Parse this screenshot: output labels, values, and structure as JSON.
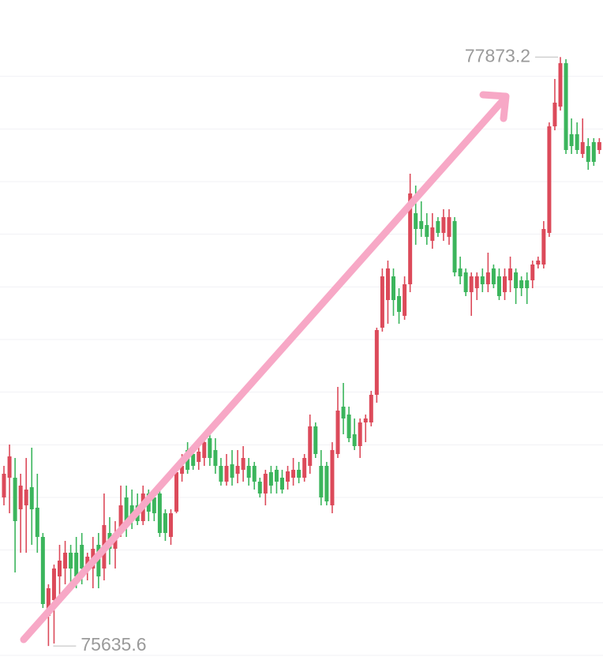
{
  "chart_data": {
    "type": "candlestick",
    "up_color": "#dc4a5a",
    "down_color": "#3bb55c",
    "grid": true,
    "ylim": [
      75552,
      78090
    ],
    "yticks": [
      75600,
      75800,
      76000,
      76200,
      76400,
      76600,
      76800,
      77000,
      77200,
      77400,
      77600,
      77800
    ],
    "high_marker": 77873.2,
    "low_marker": 75635.6,
    "open": [
      76200,
      76275,
      76275,
      76155,
      76170,
      76239,
      76161,
      76050,
      75750,
      75810,
      75900,
      75930,
      75990,
      75990,
      76020,
      75930,
      75930,
      76020,
      75930,
      76065,
      76005,
      76080,
      76200,
      76170,
      76170,
      76110,
      76215,
      76200,
      76215,
      76140,
      76050,
      76146,
      76290,
      76380,
      76365,
      76335,
      76350,
      76425,
      76380,
      76320,
      76260,
      76326,
      76290,
      76305,
      76320,
      76320,
      76260,
      76215,
      76296,
      76305,
      76275,
      76260,
      76275,
      76305,
      76275,
      76320,
      76470,
      76320,
      76320,
      76170,
      76365,
      76545,
      76515,
      76440,
      76395,
      76485,
      76485,
      76590,
      76845,
      76950,
      77040,
      76965,
      76890,
      77010,
      77280,
      77250,
      77235,
      77175,
      77250,
      77205,
      77190,
      77250,
      77070,
      77055,
      76980,
      76995,
      77040,
      77010,
      77070,
      77040,
      76980,
      77025,
      77055,
      77025,
      77025,
      77025,
      77085,
      77085,
      77205,
      77610,
      77685,
      77850,
      77580,
      77580,
      77505,
      77535,
      77550,
      77520
    ],
    "high": [
      76320,
      76401,
      76350,
      76290,
      76350,
      76389,
      76290,
      76065,
      75870,
      75945,
      76020,
      76035,
      76020,
      76050,
      76065,
      75990,
      76050,
      76065,
      76215,
      76125,
      76110,
      76245,
      76245,
      76230,
      76215,
      76245,
      76230,
      76230,
      76230,
      76155,
      76155,
      76320,
      76365,
      76410,
      76380,
      76395,
      76425,
      76440,
      76425,
      76350,
      76365,
      76380,
      76380,
      76395,
      76350,
      76335,
      76275,
      76305,
      76320,
      76320,
      76305,
      76320,
      76350,
      76335,
      76365,
      76515,
      76485,
      76380,
      76335,
      76410,
      76620,
      76635,
      76545,
      76500,
      76500,
      76515,
      76605,
      76845,
      77070,
      77100,
      77070,
      76995,
      77040,
      77430,
      77385,
      77325,
      77280,
      77280,
      77265,
      77295,
      77295,
      77265,
      77115,
      77070,
      77055,
      77055,
      77070,
      77130,
      77085,
      77070,
      77070,
      77115,
      77070,
      77040,
      77055,
      77100,
      77115,
      77250,
      77625,
      77790,
      77873.2,
      77865,
      77640,
      77625,
      77640,
      77565,
      77565,
      77565
    ],
    "low": [
      76170,
      76140,
      75915,
      75990,
      75990,
      76020,
      75990,
      75780,
      75635.6,
      75645,
      75810,
      75870,
      75870,
      75855,
      75870,
      75885,
      75855,
      75855,
      75885,
      75945,
      75930,
      76050,
      76050,
      76080,
      76095,
      76095,
      76110,
      76110,
      76050,
      76035,
      76020,
      76140,
      76260,
      76290,
      76305,
      76305,
      76320,
      76320,
      76290,
      76245,
      76245,
      76245,
      76254,
      76260,
      76245,
      76230,
      76200,
      76170,
      76215,
      76215,
      76215,
      76230,
      76245,
      76254,
      76260,
      76290,
      76350,
      76170,
      76170,
      76140,
      76350,
      76440,
      76410,
      76380,
      76350,
      76410,
      76470,
      76560,
      76830,
      76860,
      76890,
      76860,
      76875,
      76980,
      77160,
      77190,
      77160,
      77145,
      77190,
      77175,
      77160,
      77040,
      77010,
      76965,
      76890,
      76950,
      76980,
      76980,
      76995,
      76950,
      76950,
      76980,
      76935,
      76965,
      76935,
      76995,
      77070,
      77070,
      77190,
      77595,
      77670,
      77505,
      77505,
      77505,
      77490,
      77445,
      77460,
      77505
    ],
    "close": [
      76290,
      76356,
      76110,
      76245,
      76230,
      76155,
      76050,
      75795,
      75855,
      75930,
      75960,
      75990,
      75930,
      75900,
      75930,
      75975,
      76005,
      75900,
      76095,
      76005,
      76065,
      76170,
      76095,
      76110,
      76110,
      76215,
      76146,
      76140,
      76065,
      76065,
      76140,
      76296,
      76320,
      76305,
      76320,
      76374,
      76410,
      76350,
      76320,
      76260,
      76320,
      76275,
      76320,
      76350,
      76275,
      76260,
      76215,
      76290,
      76245,
      76260,
      76230,
      76299,
      76305,
      76275,
      76350,
      76470,
      76365,
      76200,
      76185,
      76380,
      76530,
      76500,
      76425,
      76395,
      76485,
      76500,
      76590,
      76836,
      77040,
      77070,
      76950,
      76905,
      77010,
      77355,
      77220,
      77220,
      77190,
      77226,
      77205,
      77265,
      77265,
      77055,
      77040,
      76980,
      77040,
      77040,
      77010,
      77055,
      77010,
      76965,
      77040,
      77070,
      76995,
      76995,
      76995,
      77085,
      77100,
      77220,
      77610,
      77700,
      77850,
      77520,
      77535,
      77520,
      77550,
      77475,
      77475,
      77550
    ]
  }
}
